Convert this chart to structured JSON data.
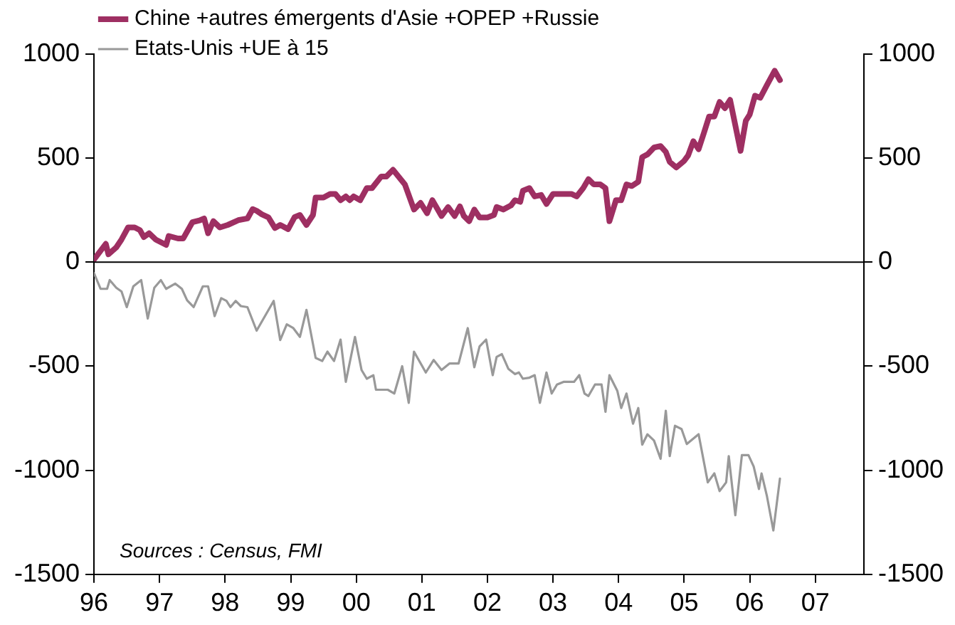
{
  "chart_data": {
    "type": "line",
    "xlim": [
      1996,
      2007.74
    ],
    "xticks": [
      {
        "value": 1996,
        "label": "96"
      },
      {
        "value": 1997,
        "label": "97"
      },
      {
        "value": 1998,
        "label": "98"
      },
      {
        "value": 1999,
        "label": "99"
      },
      {
        "value": 2000,
        "label": "00"
      },
      {
        "value": 2001,
        "label": "01"
      },
      {
        "value": 2002,
        "label": "02"
      },
      {
        "value": 2003,
        "label": "03"
      },
      {
        "value": 2004,
        "label": "04"
      },
      {
        "value": 2005,
        "label": "05"
      },
      {
        "value": 2006,
        "label": "06"
      },
      {
        "value": 2007,
        "label": "07"
      }
    ],
    "ylim": [
      -1500,
      1000
    ],
    "yticks": [
      -1500,
      -1000,
      -500,
      0,
      500,
      1000
    ],
    "y2lim": [
      -1500,
      1000
    ],
    "y2ticks": [
      -1500,
      -1000,
      -500,
      0,
      500,
      1000
    ],
    "grid": false,
    "legend": "top left",
    "marker": "none",
    "line_style": "solid",
    "ref_lines": [
      {
        "axis": "y",
        "value": 0,
        "color": "#000000"
      }
    ],
    "annotations": [
      "Sources : Census, FMI"
    ],
    "series": [
      {
        "name": "Chine +autres émergents d'Asie +OPEP +Russie",
        "color": "#9e2f62",
        "x": [
          1996.0,
          1996.18,
          1996.22,
          1996.34,
          1996.42,
          1996.52,
          1996.62,
          1996.7,
          1996.76,
          1996.84,
          1996.94,
          1997.1,
          1997.14,
          1997.28,
          1997.36,
          1997.5,
          1997.62,
          1997.68,
          1997.74,
          1997.82,
          1997.92,
          1998.04,
          1998.2,
          1998.34,
          1998.42,
          1998.48,
          1998.56,
          1998.66,
          1998.76,
          1998.84,
          1998.96,
          1999.06,
          1999.14,
          1999.24,
          1999.34,
          1999.38,
          1999.5,
          1999.6,
          1999.68,
          1999.76,
          1999.84,
          1999.9,
          1999.96,
          2000.06,
          2000.16,
          2000.24,
          2000.38,
          2000.46,
          2000.56,
          2000.74,
          2000.88,
          2000.98,
          2001.08,
          2001.16,
          2001.3,
          2001.4,
          2001.5,
          2001.58,
          2001.64,
          2001.72,
          2001.8,
          2001.88,
          2002.0,
          2002.1,
          2002.14,
          2002.24,
          2002.36,
          2002.42,
          2002.5,
          2002.54,
          2002.64,
          2002.72,
          2002.82,
          2002.9,
          2003.0,
          2003.28,
          2003.36,
          2003.46,
          2003.54,
          2003.62,
          2003.72,
          2003.8,
          2003.86,
          2003.96,
          2004.04,
          2004.12,
          2004.2,
          2004.3,
          2004.36,
          2004.44,
          2004.54,
          2004.64,
          2004.72,
          2004.78,
          2004.88,
          2005.0,
          2005.06,
          2005.14,
          2005.22,
          2005.3,
          2005.38,
          2005.46,
          2005.54,
          2005.62,
          2005.7,
          2005.86,
          2005.94,
          2006.0,
          2006.08,
          2006.16,
          2006.26,
          2006.38,
          2006.46
        ],
        "values": [
          13,
          88,
          38,
          71,
          109,
          167,
          167,
          154,
          121,
          139,
          109,
          83,
          126,
          114,
          114,
          192,
          202,
          210,
          139,
          197,
          167,
          179,
          202,
          210,
          255,
          247,
          230,
          215,
          164,
          179,
          159,
          217,
          227,
          179,
          227,
          311,
          311,
          328,
          328,
          298,
          316,
          298,
          316,
          298,
          356,
          356,
          412,
          412,
          444,
          374,
          253,
          285,
          235,
          298,
          222,
          265,
          222,
          268,
          222,
          197,
          253,
          215,
          215,
          227,
          265,
          253,
          273,
          298,
          290,
          343,
          356,
          316,
          323,
          280,
          328,
          328,
          316,
          356,
          399,
          374,
          374,
          356,
          197,
          298,
          298,
          374,
          366,
          386,
          505,
          518,
          551,
          558,
          530,
          482,
          455,
          487,
          513,
          581,
          543,
          620,
          700,
          700,
          770,
          740,
          780,
          535,
          680,
          710,
          800,
          790,
          850,
          920,
          875
        ]
      },
      {
        "name": "Etats-Unis +UE à 15",
        "color": "#999999",
        "x": [
          1996.0,
          1996.1,
          1996.2,
          1996.24,
          1996.34,
          1996.42,
          1996.5,
          1996.6,
          1996.72,
          1996.82,
          1996.92,
          1997.02,
          1997.1,
          1997.24,
          1997.34,
          1997.42,
          1997.52,
          1997.66,
          1997.74,
          1997.84,
          1997.94,
          1998.02,
          1998.08,
          1998.16,
          1998.24,
          1998.34,
          1998.48,
          1998.74,
          1998.84,
          1998.94,
          1999.04,
          1999.14,
          1999.24,
          1999.38,
          1999.48,
          1999.56,
          1999.66,
          1999.76,
          1999.84,
          1999.98,
          2000.08,
          2000.16,
          2000.26,
          2000.3,
          2000.48,
          2000.58,
          2000.7,
          2000.8,
          2000.88,
          2001.06,
          2001.18,
          2001.3,
          2001.42,
          2001.56,
          2001.7,
          2001.8,
          2001.88,
          2001.98,
          2002.08,
          2002.14,
          2002.22,
          2002.32,
          2002.42,
          2002.48,
          2002.54,
          2002.64,
          2002.72,
          2002.8,
          2002.9,
          2002.98,
          2003.06,
          2003.16,
          2003.32,
          2003.4,
          2003.48,
          2003.54,
          2003.64,
          2003.74,
          2003.8,
          2003.86,
          2003.98,
          2004.04,
          2004.12,
          2004.22,
          2004.3,
          2004.36,
          2004.44,
          2004.54,
          2004.64,
          2004.72,
          2004.78,
          2004.86,
          2004.96,
          2005.04,
          2005.22,
          2005.36,
          2005.46,
          2005.54,
          2005.64,
          2005.68,
          2005.78,
          2005.88,
          2005.98,
          2006.06,
          2006.14,
          2006.18,
          2006.26,
          2006.36,
          2006.46
        ],
        "values": [
          -53,
          -128,
          -128,
          -86,
          -123,
          -141,
          -216,
          -116,
          -86,
          -271,
          -123,
          -86,
          -128,
          -103,
          -128,
          -183,
          -216,
          -116,
          -116,
          -259,
          -173,
          -186,
          -216,
          -186,
          -211,
          -216,
          -329,
          -186,
          -374,
          -299,
          -317,
          -359,
          -229,
          -460,
          -475,
          -430,
          -475,
          -372,
          -575,
          -359,
          -518,
          -560,
          -543,
          -613,
          -613,
          -631,
          -500,
          -676,
          -430,
          -530,
          -470,
          -518,
          -487,
          -487,
          -317,
          -505,
          -405,
          -372,
          -543,
          -455,
          -442,
          -513,
          -538,
          -530,
          -560,
          -555,
          -543,
          -676,
          -530,
          -631,
          -588,
          -575,
          -575,
          -543,
          -631,
          -643,
          -588,
          -588,
          -719,
          -543,
          -618,
          -701,
          -631,
          -776,
          -701,
          -877,
          -827,
          -857,
          -945,
          -714,
          -932,
          -786,
          -802,
          -874,
          -827,
          -1058,
          -1015,
          -1100,
          -1058,
          -932,
          -1216,
          -927,
          -927,
          -982,
          -1090,
          -1015,
          -1121,
          -1289,
          -1040
        ]
      }
    ]
  }
}
